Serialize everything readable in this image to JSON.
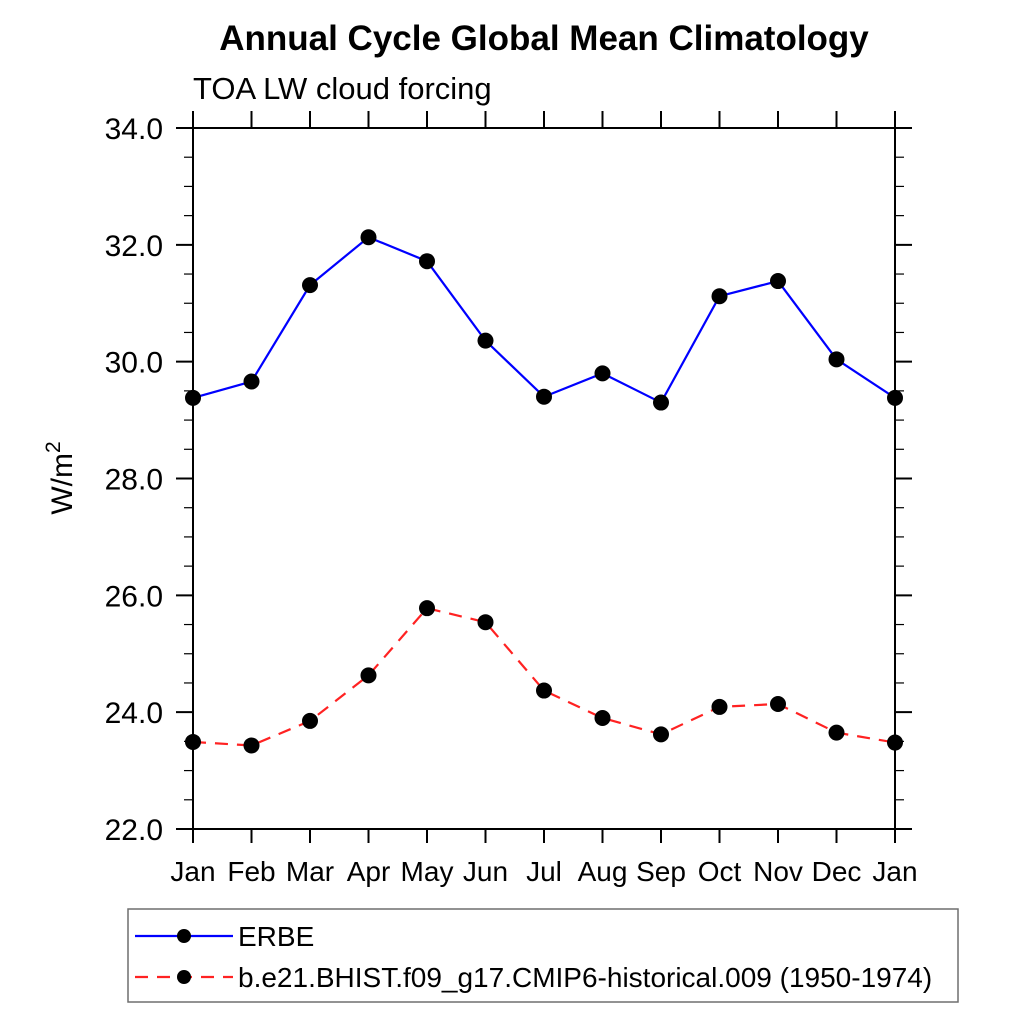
{
  "page": {
    "background": "#ffffff"
  },
  "chart_data": {
    "type": "line",
    "title": "Annual Cycle Global Mean Climatology",
    "subtitle": "TOA LW cloud forcing",
    "ylabel": "W/m²",
    "xlabel": "",
    "categories": [
      "Jan",
      "Feb",
      "Mar",
      "Apr",
      "May",
      "Jun",
      "Jul",
      "Aug",
      "Sep",
      "Oct",
      "Nov",
      "Dec",
      "Jan"
    ],
    "series": [
      {
        "name": "ERBE",
        "values": [
          29.38,
          29.66,
          31.31,
          32.13,
          31.72,
          30.36,
          29.4,
          29.8,
          29.3,
          31.12,
          31.38,
          30.04,
          29.38
        ],
        "line_color": "#0000ff",
        "line_style": "solid",
        "marker": "circle",
        "marker_color": "#000000"
      },
      {
        "name": "b.e21.BHIST.f09_g17.CMIP6-historical.009 (1950-1974)",
        "values": [
          23.49,
          23.43,
          23.85,
          24.63,
          25.78,
          25.54,
          24.37,
          23.9,
          23.62,
          24.09,
          24.14,
          23.65,
          23.48
        ],
        "line_color": "#ff2222",
        "line_style": "dashed",
        "marker": "circle",
        "marker_color": "#000000"
      }
    ],
    "ylim": [
      22.0,
      34.0
    ],
    "ytick_major_step": 2.0,
    "ytick_minor_step": 0.5,
    "ytick_labels": [
      "22.0",
      "24.0",
      "26.0",
      "28.0",
      "30.0",
      "32.0",
      "34.0"
    ],
    "grid": false,
    "legend_position": "bottom-left-box",
    "axis_color": "#000000",
    "legend_border_color": "#6f6f6f"
  }
}
